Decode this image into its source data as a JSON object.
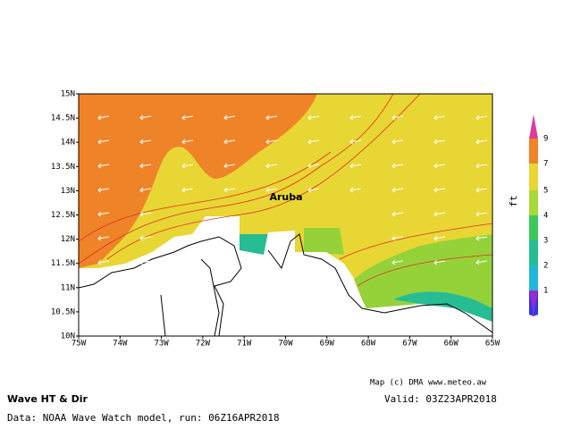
{
  "map": {
    "label": "Aruba",
    "lat_ticks": [
      "15N",
      "14.5N",
      "14N",
      "13.5N",
      "13N",
      "12.5N",
      "12N",
      "11.5N",
      "11N",
      "10.5N",
      "10N"
    ],
    "lon_ticks": [
      "75W",
      "74W",
      "73W",
      "72W",
      "71W",
      "70W",
      "69W",
      "68W",
      "67W",
      "66W",
      "65W"
    ],
    "legend": {
      "unit": "ft",
      "labels": [
        "9",
        "7",
        "5",
        "4",
        "3",
        "2",
        "1"
      ]
    },
    "credit": "Map (c) DMA www.meteo.aw",
    "title": "Wave HT & Dir",
    "valid": "Valid: 03Z23APR2018",
    "source": "Data: NOAA Wave Watch model, run: 06Z16APR2018"
  }
}
